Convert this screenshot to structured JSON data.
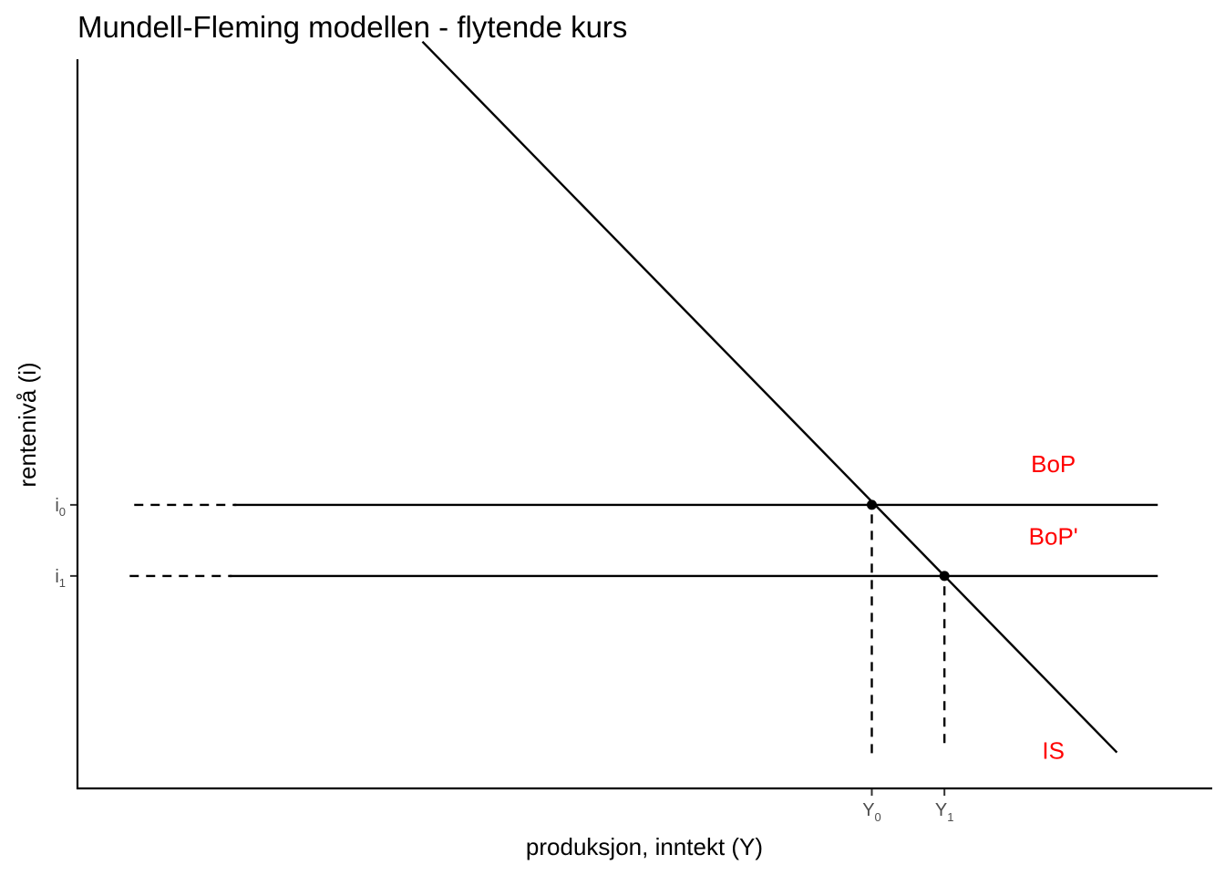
{
  "chart_data": {
    "type": "line",
    "title": "Mundell-Fleming modellen - flytende kurs",
    "xlabel": "produksjon, inntekt (Y)",
    "ylabel": "rentenivå (i)",
    "label_color": "#ff0000",
    "line_color": "#000000",
    "xlim": [
      0,
      10
    ],
    "ylim": [
      0,
      10
    ],
    "grid": false,
    "x_ticks": [
      {
        "base": "Y",
        "sub": "0",
        "x": 7
      },
      {
        "base": "Y",
        "sub": "1",
        "x": 7.64
      }
    ],
    "y_ticks": [
      {
        "base": "i",
        "sub": "0",
        "y": 3.63
      },
      {
        "base": "i",
        "sub": "1",
        "y": 2.72
      }
    ],
    "series": [
      {
        "name": "IS",
        "style": "solid",
        "x": [
          3.04,
          9.16
        ],
        "y": [
          9.56,
          0.46
        ]
      },
      {
        "name": "BoP",
        "style": "solid",
        "x": [
          1.38,
          9.52
        ],
        "y": [
          3.63,
          3.63
        ]
      },
      {
        "name": "BoP'",
        "style": "solid",
        "x": [
          1.34,
          9.52
        ],
        "y": [
          2.72,
          2.72
        ]
      }
    ],
    "guides": [
      {
        "style": "dashed",
        "x": [
          0.5,
          1.4
        ],
        "y": [
          3.63,
          3.63
        ]
      },
      {
        "style": "dashed",
        "x": [
          0.46,
          1.36
        ],
        "y": [
          2.72,
          2.72
        ]
      },
      {
        "style": "dashed",
        "x": [
          7,
          7
        ],
        "y": [
          0.45,
          3.63
        ]
      },
      {
        "style": "dashed",
        "x": [
          7.64,
          7.64
        ],
        "y": [
          0.58,
          2.72
        ]
      }
    ],
    "points": [
      {
        "x": 7,
        "y": 3.63
      },
      {
        "x": 7.64,
        "y": 2.72
      }
    ],
    "annotations": [
      {
        "text": "BoP",
        "x": 8.6,
        "y": 4.05
      },
      {
        "text": "BoP'",
        "x": 8.6,
        "y": 3.12
      },
      {
        "text": "IS",
        "x": 8.6,
        "y": 0.38
      }
    ]
  }
}
